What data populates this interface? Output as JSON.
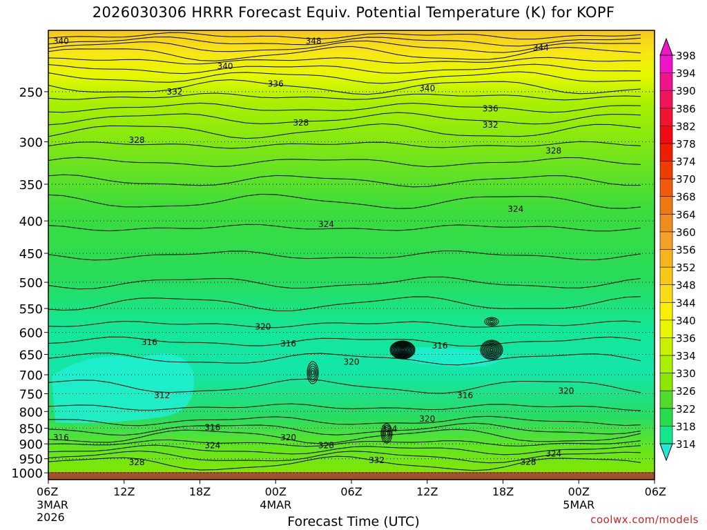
{
  "chart_data": {
    "type": "heatmap",
    "title": "2026030306 HRRR Forecast Equiv. Potential Temperature (K) for KOPF",
    "xlabel": "Forecast Time (UTC)",
    "ylabel": "",
    "y_scale": "log-pressure",
    "y_ticks": [
      "250",
      "300",
      "350",
      "400",
      "450",
      "500",
      "550",
      "600",
      "650",
      "700",
      "750",
      "800",
      "850",
      "900",
      "950",
      "1000"
    ],
    "y_tick_values": [
      250,
      300,
      350,
      400,
      450,
      500,
      550,
      600,
      650,
      700,
      750,
      800,
      850,
      900,
      950,
      1000
    ],
    "ylim": [
      1025,
      200
    ],
    "x_ticks": [
      {
        "hour": 0,
        "label": "06Z",
        "sub1": "3MAR",
        "sub2": "2026"
      },
      {
        "hour": 6,
        "label": "12Z",
        "sub1": "",
        "sub2": ""
      },
      {
        "hour": 12,
        "label": "18Z",
        "sub1": "",
        "sub2": ""
      },
      {
        "hour": 18,
        "label": "00Z",
        "sub1": "4MAR",
        "sub2": ""
      },
      {
        "hour": 24,
        "label": "06Z",
        "sub1": "",
        "sub2": ""
      },
      {
        "hour": 30,
        "label": "12Z",
        "sub1": "",
        "sub2": ""
      },
      {
        "hour": 36,
        "label": "18Z",
        "sub1": "",
        "sub2": ""
      },
      {
        "hour": 42,
        "label": "00Z",
        "sub1": "5MAR",
        "sub2": ""
      },
      {
        "hour": 48,
        "label": "06Z",
        "sub1": "",
        "sub2": ""
      }
    ],
    "xlim": [
      0,
      48
    ],
    "colorbar": {
      "ticks": [
        "398",
        "394",
        "390",
        "386",
        "382",
        "378",
        "374",
        "370",
        "368",
        "364",
        "360",
        "356",
        "352",
        "348",
        "344",
        "340",
        "336",
        "334",
        "330",
        "326",
        "322",
        "318",
        "314"
      ],
      "colors": [
        "#f014c8",
        "#f0148c",
        "#f0145a",
        "#f01432",
        "#f00a14",
        "#f01e00",
        "#f03c00",
        "#f05a0a",
        "#f07814",
        "#f08c1e",
        "#f5a028",
        "#f8b41e",
        "#f8c814",
        "#f8dc14",
        "#f8f000",
        "#e6f800",
        "#c8f000",
        "#aaf000",
        "#8ce600",
        "#50dc28",
        "#28dc50",
        "#14e68c"
      ],
      "upper_color": "#f014c8",
      "lower_color": "#28e6d2"
    },
    "contour_labels": [
      {
        "value": "340",
        "hour": 1,
        "p": 208
      },
      {
        "value": "348",
        "hour": 21,
        "p": 208
      },
      {
        "value": "344",
        "hour": 39,
        "p": 213
      },
      {
        "value": "340",
        "hour": 14,
        "p": 228
      },
      {
        "value": "336",
        "hour": 18,
        "p": 243
      },
      {
        "value": "340",
        "hour": 30,
        "p": 247
      },
      {
        "value": "332",
        "hour": 10,
        "p": 250
      },
      {
        "value": "336",
        "hour": 35,
        "p": 266
      },
      {
        "value": "332",
        "hour": 35,
        "p": 282
      },
      {
        "value": "328",
        "hour": 20,
        "p": 280
      },
      {
        "value": "328",
        "hour": 7,
        "p": 298
      },
      {
        "value": "328",
        "hour": 40,
        "p": 310
      },
      {
        "value": "324",
        "hour": 37,
        "p": 383
      },
      {
        "value": "324",
        "hour": 22,
        "p": 405
      },
      {
        "value": "320",
        "hour": 17,
        "p": 588
      },
      {
        "value": "316",
        "hour": 8,
        "p": 622
      },
      {
        "value": "316",
        "hour": 19,
        "p": 625
      },
      {
        "value": "316",
        "hour": 31,
        "p": 630
      },
      {
        "value": "320",
        "hour": 24,
        "p": 668
      },
      {
        "value": "312",
        "hour": 9,
        "p": 755
      },
      {
        "value": "316",
        "hour": 33,
        "p": 755
      },
      {
        "value": "320",
        "hour": 41,
        "p": 742
      },
      {
        "value": "320",
        "hour": 30,
        "p": 822
      },
      {
        "value": "316",
        "hour": 13,
        "p": 848
      },
      {
        "value": "324",
        "hour": 27,
        "p": 852
      },
      {
        "value": "316",
        "hour": 1,
        "p": 880
      },
      {
        "value": "320",
        "hour": 19,
        "p": 880
      },
      {
        "value": "324",
        "hour": 13,
        "p": 905
      },
      {
        "value": "328",
        "hour": 22,
        "p": 905
      },
      {
        "value": "332",
        "hour": 26,
        "p": 955
      },
      {
        "value": "324",
        "hour": 40,
        "p": 933
      },
      {
        "value": "328",
        "hour": 7,
        "p": 963
      },
      {
        "value": "328",
        "hour": 38,
        "p": 962
      }
    ]
  },
  "footer": {
    "credit": "coolwx.com/models"
  }
}
